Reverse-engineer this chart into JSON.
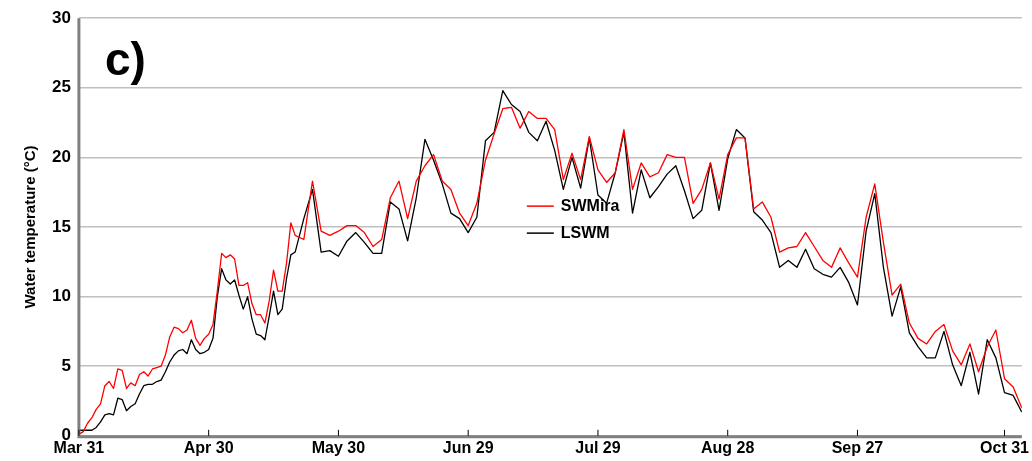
{
  "chart_data": {
    "type": "line",
    "title": "c)",
    "ylabel": "Water temperature (°C)",
    "x": [
      "--03-31",
      "--04-01",
      "--04-02",
      "--04-03",
      "--04-04",
      "--04-05",
      "--04-06",
      "--04-07",
      "--04-08",
      "--04-09",
      "--04-10",
      "--04-11",
      "--04-12",
      "--04-13",
      "--04-14",
      "--04-15",
      "--04-16",
      "--04-17",
      "--04-18",
      "--04-19",
      "--04-20",
      "--04-21",
      "--04-22",
      "--04-23",
      "--04-24",
      "--04-25",
      "--04-26",
      "--04-27",
      "--04-28",
      "--04-29",
      "--04-30",
      "--05-01",
      "--05-02",
      "--05-03",
      "--05-04",
      "--05-05",
      "--05-06",
      "--05-07",
      "--05-08",
      "--05-09",
      "--05-10",
      "--05-11",
      "--05-12",
      "--05-13",
      "--05-14",
      "--05-15",
      "--05-16",
      "--05-17",
      "--05-18",
      "--05-19",
      "--05-20",
      "--05-22",
      "--05-24",
      "--05-26",
      "--05-28",
      "--05-30",
      "--06-01",
      "--06-03",
      "--06-05",
      "--06-07",
      "--06-09",
      "--06-11",
      "--06-13",
      "--06-15",
      "--06-17",
      "--06-19",
      "--06-21",
      "--06-23",
      "--06-25",
      "--06-27",
      "--06-29",
      "--07-01",
      "--07-03",
      "--07-05",
      "--07-07",
      "--07-09",
      "--07-11",
      "--07-13",
      "--07-15",
      "--07-17",
      "--07-19",
      "--07-21",
      "--07-23",
      "--07-25",
      "--07-27",
      "--07-29",
      "--07-31",
      "--08-02",
      "--08-04",
      "--08-06",
      "--08-08",
      "--08-10",
      "--08-12",
      "--08-14",
      "--08-16",
      "--08-18",
      "--08-20",
      "--08-22",
      "--08-24",
      "--08-26",
      "--08-28",
      "--08-30",
      "--09-01",
      "--09-03",
      "--09-05",
      "--09-07",
      "--09-09",
      "--09-11",
      "--09-13",
      "--09-15",
      "--09-17",
      "--09-19",
      "--09-21",
      "--09-23",
      "--09-25",
      "--09-27",
      "--09-29",
      "--10-01",
      "--10-03",
      "--10-05",
      "--10-07",
      "--10-09",
      "--10-11",
      "--10-13",
      "--10-15",
      "--10-17",
      "--10-19",
      "--10-21",
      "--10-23",
      "--10-25",
      "--10-27",
      "--10-29",
      "--10-31",
      "--11-02",
      "--11-04"
    ],
    "xlim": [
      "--03-31",
      "--11-04"
    ],
    "xticks": [
      {
        "value": "--03-31",
        "label": "Mar 31"
      },
      {
        "value": "--04-30",
        "label": "Apr 30"
      },
      {
        "value": "--05-30",
        "label": "May 30"
      },
      {
        "value": "--06-29",
        "label": "Jun 29"
      },
      {
        "value": "--07-29",
        "label": "Jul 29"
      },
      {
        "value": "--08-28",
        "label": "Aug 28"
      },
      {
        "value": "--09-27",
        "label": "Sep 27"
      },
      {
        "value": "--10-31",
        "label": "Oct 31"
      }
    ],
    "ylim": [
      0,
      30
    ],
    "yticks": [
      0,
      5,
      10,
      15,
      20,
      25,
      30
    ],
    "grid": "y",
    "legend": "center",
    "series": [
      {
        "name": "SWMira",
        "color": "#ff0000",
        "values": [
          0.1,
          0.3,
          0.9,
          1.3,
          1.9,
          2.3,
          3.6,
          3.9,
          3.4,
          4.8,
          4.7,
          3.4,
          3.8,
          3.6,
          4.4,
          4.6,
          4.3,
          4.8,
          4.9,
          5.0,
          5.8,
          7.1,
          7.8,
          7.7,
          7.4,
          7.6,
          8.3,
          7.0,
          6.5,
          7.0,
          7.3,
          8.0,
          10.4,
          13.1,
          12.8,
          13.0,
          12.7,
          10.8,
          10.8,
          11.0,
          9.5,
          8.7,
          8.7,
          8.1,
          9.7,
          11.9,
          10.4,
          10.4,
          12.4,
          15.3,
          14.4,
          14.1,
          18.3,
          14.7,
          14.4,
          14.7,
          15.1,
          15.1,
          14.6,
          13.6,
          14.1,
          17.1,
          18.3,
          15.6,
          18.3,
          19.4,
          20.2,
          18.3,
          17.7,
          16.0,
          15.1,
          16.7,
          19.8,
          21.7,
          23.5,
          23.6,
          22.1,
          23.3,
          22.8,
          22.8,
          22.0,
          18.4,
          20.3,
          18.4,
          21.5,
          19.1,
          18.2,
          18.9,
          22.0,
          17.7,
          19.6,
          18.6,
          18.9,
          20.2,
          20.0,
          20.0,
          16.7,
          17.7,
          19.6,
          17.0,
          20.2,
          21.4,
          21.4,
          16.3,
          16.8,
          15.7,
          13.2,
          13.5,
          13.6,
          14.6,
          13.6,
          12.6,
          12.1,
          13.5,
          12.4,
          11.4,
          15.7,
          18.1,
          13.9,
          10.1,
          10.9,
          8.1,
          7.0,
          6.6,
          7.5,
          8.0,
          6.1,
          5.1,
          6.6,
          4.6,
          6.4,
          7.6,
          4.1,
          3.5,
          2.0
        ]
      },
      {
        "name": "LSWM",
        "color": "#000000",
        "values": [
          0.4,
          0.4,
          0.4,
          0.4,
          0.6,
          1.0,
          1.5,
          1.6,
          1.5,
          2.7,
          2.6,
          1.8,
          2.1,
          2.3,
          3.0,
          3.6,
          3.7,
          3.7,
          3.9,
          4.0,
          4.6,
          5.3,
          5.8,
          6.1,
          6.2,
          5.9,
          6.9,
          6.2,
          5.9,
          6.0,
          6.2,
          7.0,
          10.0,
          12.0,
          11.2,
          10.9,
          11.2,
          10.1,
          9.1,
          10.0,
          8.4,
          7.3,
          7.2,
          6.9,
          8.6,
          10.4,
          8.7,
          9.1,
          11.3,
          13.0,
          13.2,
          15.6,
          17.7,
          13.2,
          13.3,
          12.9,
          14.0,
          14.6,
          13.9,
          13.1,
          13.1,
          16.8,
          16.3,
          14.0,
          17.1,
          21.3,
          19.8,
          18.1,
          16.0,
          15.6,
          14.6,
          15.7,
          21.2,
          21.8,
          24.8,
          23.8,
          23.3,
          21.8,
          21.2,
          22.6,
          20.5,
          17.7,
          20.0,
          17.8,
          21.4,
          17.3,
          16.7,
          18.9,
          21.8,
          16.0,
          19.1,
          17.1,
          17.9,
          18.8,
          19.4,
          17.6,
          15.6,
          16.2,
          19.6,
          16.2,
          19.9,
          22.0,
          21.4,
          16.1,
          15.5,
          14.6,
          12.1,
          12.6,
          12.1,
          13.4,
          12.0,
          11.6,
          11.4,
          12.1,
          11.0,
          9.4,
          14.7,
          17.4,
          12.1,
          8.6,
          10.7,
          7.4,
          6.4,
          5.6,
          5.6,
          7.5,
          5.1,
          3.6,
          6.0,
          3.0,
          6.9,
          5.6,
          3.1,
          2.9,
          1.7
        ]
      }
    ]
  }
}
